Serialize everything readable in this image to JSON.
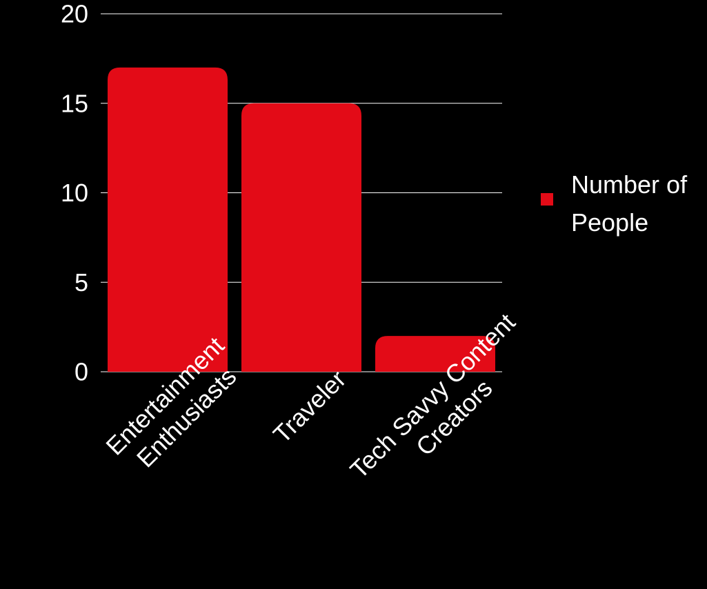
{
  "chart_data": {
    "type": "bar",
    "categories": [
      "Entertainment Enthusiasts",
      "Traveler",
      "Tech Savvy Content Creators"
    ],
    "series": [
      {
        "name": "Number of People",
        "values": [
          17,
          15,
          2
        ]
      }
    ],
    "ylim": [
      0,
      20
    ],
    "yticks": [
      0,
      5,
      10,
      15,
      20
    ],
    "grid": true,
    "legend_position": "right",
    "colors": {
      "background": "#000000",
      "bar": "#e30b17",
      "text": "#ffffff",
      "grid": "#ffffff"
    }
  }
}
